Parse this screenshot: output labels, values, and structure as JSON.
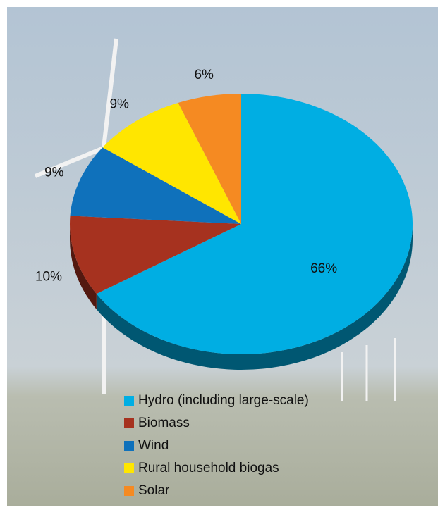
{
  "chart_data": {
    "type": "pie",
    "categories": [
      "Hydro (including large-scale)",
      "Biomass",
      "Wind",
      "Rural household biogas",
      "Solar"
    ],
    "values": [
      66,
      10,
      9,
      9,
      6
    ],
    "value_labels": [
      "66%",
      "10%",
      "9%",
      "9%",
      "6%"
    ],
    "colors": [
      "#00aee3",
      "#a6321f",
      "#0f71bb",
      "#ffe600",
      "#f58a22"
    ],
    "legend": "bottom-left"
  }
}
